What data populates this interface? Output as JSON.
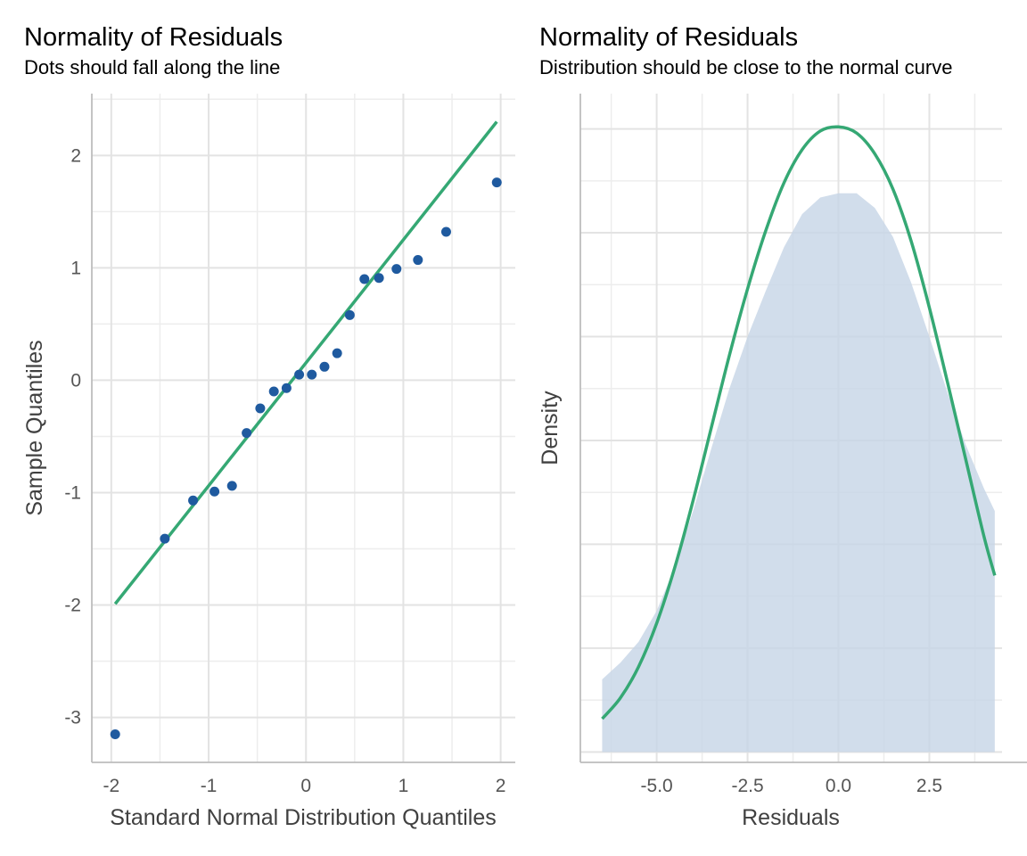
{
  "colors": {
    "points": "#1f5a9f",
    "reference_line": "#35a874",
    "density_fill": "#c6d4e6",
    "normal_curve": "#35a874"
  },
  "chart_data": [
    {
      "type": "scatter",
      "title": "Normality of Residuals",
      "subtitle": "Dots should fall along the line",
      "xlabel": "Standard Normal Distribution Quantiles",
      "ylabel": "Sample Quantiles",
      "xlim": [
        -2.2,
        2.15
      ],
      "ylim": [
        -3.4,
        2.55
      ],
      "xticks": [
        -2,
        -1,
        0,
        1,
        2
      ],
      "xtick_labels": [
        "-2",
        "-1",
        "0",
        "1",
        "2"
      ],
      "yticks": [
        -3,
        -2,
        -1,
        0,
        1,
        2
      ],
      "ytick_labels": [
        "-3",
        "-2",
        "-1",
        "0",
        "1",
        "2"
      ],
      "grid": true,
      "points": {
        "x": [
          -1.96,
          -1.45,
          -1.16,
          -0.94,
          -0.76,
          -0.61,
          -0.47,
          -0.33,
          -0.2,
          -0.07,
          0.06,
          0.19,
          0.32,
          0.45,
          0.6,
          0.75,
          0.93,
          1.15,
          1.44,
          1.96
        ],
        "y": [
          -3.15,
          -1.41,
          -1.07,
          -0.99,
          -0.94,
          -0.47,
          -0.25,
          -0.1,
          -0.07,
          0.05,
          0.05,
          0.12,
          0.24,
          0.58,
          0.9,
          0.91,
          0.99,
          1.07,
          1.32,
          1.76
        ]
      },
      "reference_line": {
        "x": [
          -1.96,
          1.96
        ],
        "y": [
          -1.99,
          2.3
        ]
      }
    },
    {
      "type": "area",
      "title": "Normality of Residuals",
      "subtitle": "Distribution should be close to the normal curve",
      "xlabel": "Residuals",
      "ylabel": "Density",
      "xlim": [
        -7.1,
        4.5
      ],
      "ylim": [
        -0.0025,
        0.1585
      ],
      "xticks": [
        -5,
        -2.5,
        0,
        2.5
      ],
      "xtick_labels": [
        "-5.0",
        "-2.5",
        "0.0",
        "2.5"
      ],
      "grid": true,
      "density": {
        "x": [
          -6.5,
          -6.0,
          -5.5,
          -5.0,
          -4.5,
          -4.0,
          -3.5,
          -3.0,
          -2.5,
          -2.0,
          -1.5,
          -1.0,
          -0.5,
          0.0,
          0.5,
          1.0,
          1.5,
          2.0,
          2.5,
          3.0,
          3.5,
          4.0,
          4.3
        ],
        "y": [
          0.0175,
          0.0215,
          0.0265,
          0.034,
          0.0445,
          0.058,
          0.073,
          0.0875,
          0.1,
          0.111,
          0.1215,
          0.1295,
          0.1335,
          0.1345,
          0.1345,
          0.131,
          0.124,
          0.113,
          0.1,
          0.0865,
          0.074,
          0.0635,
          0.058
        ]
      },
      "normal_curve": {
        "x": [
          -6.5,
          -6.0,
          -5.5,
          -5.0,
          -4.5,
          -4.0,
          -3.5,
          -3.0,
          -2.5,
          -2.0,
          -1.5,
          -1.0,
          -0.5,
          0.0,
          0.5,
          1.0,
          1.5,
          2.0,
          2.5,
          3.0,
          3.5,
          4.0,
          4.3
        ],
        "y": [
          0.008,
          0.013,
          0.0205,
          0.031,
          0.0445,
          0.0605,
          0.078,
          0.0955,
          0.1115,
          0.1255,
          0.137,
          0.145,
          0.1495,
          0.1505,
          0.149,
          0.144,
          0.1355,
          0.123,
          0.107,
          0.089,
          0.0705,
          0.052,
          0.0425
        ]
      }
    }
  ]
}
